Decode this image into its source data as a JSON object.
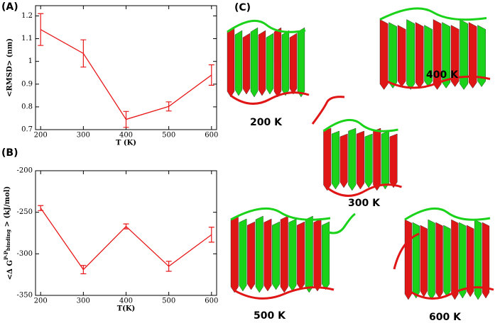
{
  "chart_data": [
    {
      "type": "line",
      "panel_label": "(A)",
      "xlabel": "T (K)",
      "ylabel": "<RMSD> (nm)",
      "x": [
        200,
        300,
        400,
        500,
        600
      ],
      "values": [
        1.14,
        1.035,
        0.745,
        0.802,
        0.94
      ],
      "errors": [
        0.07,
        0.06,
        0.035,
        0.02,
        0.045
      ],
      "color": "#e8191a",
      "xlim": [
        188,
        612
      ],
      "ylim": [
        0.7,
        1.245
      ],
      "xticks": [
        200,
        300,
        400,
        500,
        600
      ],
      "yticks": [
        0.7,
        0.8,
        0.9,
        1,
        1.1,
        1.2
      ]
    },
    {
      "type": "line",
      "panel_label": "(B)",
      "xlabel": "T(K)",
      "ylabel": [
        "<Δ G",
        "P-P",
        "binding",
        " > (kJ/mol)"
      ],
      "x": [
        200,
        300,
        400,
        500,
        600
      ],
      "values": [
        -245,
        -319,
        -267,
        -315,
        -277
      ],
      "errors": [
        3,
        5,
        3,
        6,
        9
      ],
      "color": "#e8191a",
      "xlim": [
        188,
        612
      ],
      "ylim": [
        -350,
        -200
      ],
      "xticks": [
        200,
        300,
        400,
        500,
        600
      ],
      "yticks": [
        -350,
        -300,
        -250,
        -200
      ]
    }
  ],
  "panel_c": {
    "label": "(C)",
    "structures": [
      "200 K",
      "400 K",
      "300 K",
      "500 K",
      "600 K"
    ]
  }
}
